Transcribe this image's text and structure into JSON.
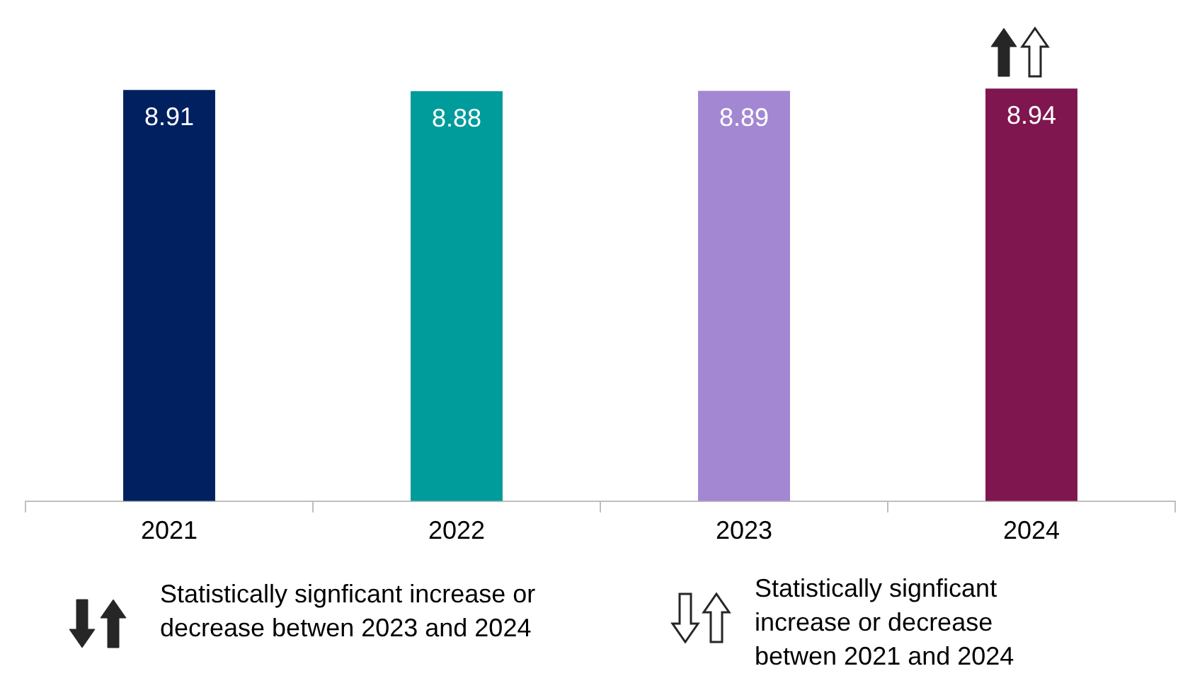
{
  "chart_data": {
    "type": "bar",
    "relative": false,
    "categories": [
      "2021",
      "2022",
      "2023",
      "2024"
    ],
    "values": [
      8.91,
      8.88,
      8.89,
      8.94
    ],
    "colors": [
      "#002060",
      "#009b9b",
      "#a387d2",
      "#7f1650"
    ],
    "data_labels": true,
    "grid": false,
    "legend": false,
    "annotations": [
      "Statistically signficant increase or decrease betwen 2023 and 2024",
      "Statistically signficant increase or decrease betwen 2021 and 2024"
    ]
  }
}
